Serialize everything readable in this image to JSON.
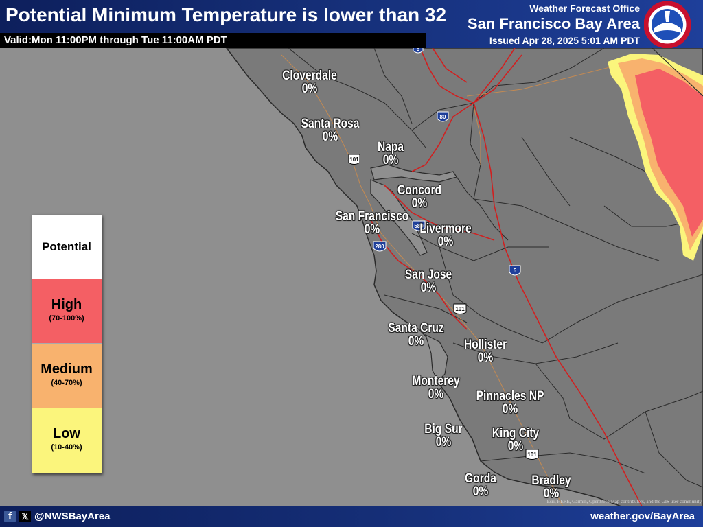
{
  "header": {
    "title": "Potential Minimum Temperature is lower than 32",
    "valid": "Valid:Mon 11:00PM through Tue 11:00AM PDT",
    "office_small": "Weather Forecast Office",
    "office_big": "San Francisco Bay Area",
    "issued": "Issued Apr 28, 2025 5:01 AM PDT",
    "logo_text": "NATIONAL WEATHER SERVICE"
  },
  "legend": {
    "title": "Potential",
    "levels": [
      {
        "label": "High",
        "range": "(70-100%)",
        "color": "#f45f64"
      },
      {
        "label": "Medium",
        "range": "(40-70%)",
        "color": "#f8b26e"
      },
      {
        "label": "Low",
        "range": "(10-40%)",
        "color": "#fbf57c"
      }
    ]
  },
  "cities": [
    {
      "name": "Cloverdale",
      "value": "0%"
    },
    {
      "name": "Santa Rosa",
      "value": "0%"
    },
    {
      "name": "Napa",
      "value": "0%"
    },
    {
      "name": "Concord",
      "value": "0%"
    },
    {
      "name": "San Francisco",
      "value": "0%"
    },
    {
      "name": "Livermore",
      "value": "0%"
    },
    {
      "name": "San Jose",
      "value": "0%"
    },
    {
      "name": "Santa Cruz",
      "value": "0%"
    },
    {
      "name": "Hollister",
      "value": "0%"
    },
    {
      "name": "Monterey",
      "value": "0%"
    },
    {
      "name": "Pinnacles NP",
      "value": "0%"
    },
    {
      "name": "Big Sur",
      "value": "0%"
    },
    {
      "name": "King City",
      "value": "0%"
    },
    {
      "name": "Gorda",
      "value": "0%"
    },
    {
      "name": "Bradley",
      "value": "0%"
    }
  ],
  "highways": [
    "5",
    "80",
    "101",
    "580",
    "280",
    "5",
    "101",
    "101"
  ],
  "footer": {
    "handle": "@NWSBayArea",
    "site": "weather.gov/BayArea",
    "attribution": "Esri, HERE, Garmin, OpenStreetMap contributors, and the GIS user community"
  },
  "colors": {
    "ocean": "#8f8f8f",
    "land": "#7a7a7a",
    "high": "#f45f64",
    "medium": "#f8b26e",
    "low": "#fbf57c",
    "header": "#16307a"
  }
}
